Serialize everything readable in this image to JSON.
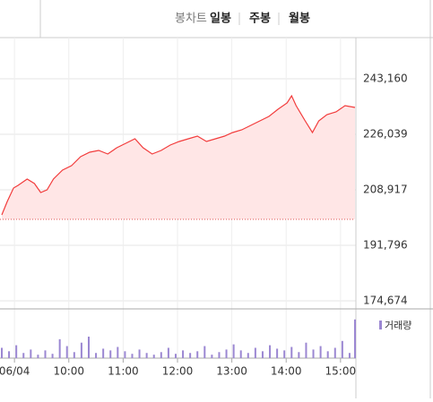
{
  "tabs": {
    "label": "봉차트",
    "items": [
      "일봉",
      "주봉",
      "월봉"
    ]
  },
  "chart_data": {
    "type": "line",
    "xlim": [
      -14,
      376
    ],
    "xticks": [
      {
        "value": 0,
        "label": "06/04"
      },
      {
        "value": 60,
        "label": "10:00"
      },
      {
        "value": 120,
        "label": "11:00"
      },
      {
        "value": 180,
        "label": "12:00"
      },
      {
        "value": 240,
        "label": "13:00"
      },
      {
        "value": 300,
        "label": "14:00"
      },
      {
        "value": 360,
        "label": "15:00"
      }
    ],
    "ylim": [
      172190,
      250890
    ],
    "yticks": [
      {
        "value": 243160,
        "label": "243,160"
      },
      {
        "value": 226039,
        "label": "226,039"
      },
      {
        "value": 208917,
        "label": "208,917"
      },
      {
        "value": 191796,
        "label": "191,796"
      },
      {
        "value": 174674,
        "label": "174,674"
      }
    ],
    "grid": true,
    "reference_line": 199800,
    "series": [
      {
        "color": "#f23c3c",
        "fill": "#ffe6e6",
        "x": [
          -14,
          -8,
          -1,
          4,
          14,
          22,
          29,
          36,
          43,
          53,
          63,
          73,
          83,
          93,
          103,
          113,
          123,
          133,
          142,
          152,
          162,
          172,
          182,
          192,
          202,
          212,
          222,
          232,
          241,
          251,
          261,
          271,
          281,
          291,
          301,
          306,
          311,
          321,
          329,
          336,
          345,
          355,
          365,
          376
        ],
        "values": [
          201185,
          205330,
          209470,
          210300,
          212230,
          210850,
          208090,
          208920,
          212230,
          214990,
          216370,
          219130,
          220510,
          221070,
          219960,
          221900,
          223280,
          224660,
          221900,
          219960,
          221070,
          222720,
          223830,
          224660,
          225490,
          223830,
          224660,
          225490,
          226590,
          227420,
          228800,
          230180,
          231560,
          233770,
          235700,
          237910,
          234880,
          230180,
          226590,
          230180,
          232110,
          232940,
          234880,
          234320
        ]
      }
    ],
    "volume": {
      "name": "거래량",
      "color": "#9b87d2",
      "ylim": [
        0,
        50
      ],
      "x": [
        -14,
        -6,
        2,
        10,
        18,
        26,
        34,
        42,
        50,
        58,
        66,
        74,
        82,
        90,
        98,
        106,
        114,
        122,
        130,
        138,
        146,
        154,
        162,
        170,
        178,
        186,
        194,
        202,
        210,
        218,
        226,
        234,
        242,
        250,
        258,
        266,
        274,
        282,
        290,
        298,
        306,
        314,
        322,
        330,
        338,
        346,
        354,
        362,
        370,
        376
      ],
      "values": [
        12,
        8,
        15,
        6,
        10,
        4,
        9,
        5,
        22,
        14,
        7,
        18,
        25,
        6,
        11,
        9,
        13,
        8,
        5,
        10,
        6,
        4,
        7,
        12,
        5,
        9,
        6,
        8,
        14,
        4,
        7,
        10,
        16,
        9,
        6,
        12,
        8,
        15,
        11,
        9,
        13,
        7,
        18,
        10,
        14,
        8,
        12,
        20,
        6,
        45
      ]
    }
  }
}
